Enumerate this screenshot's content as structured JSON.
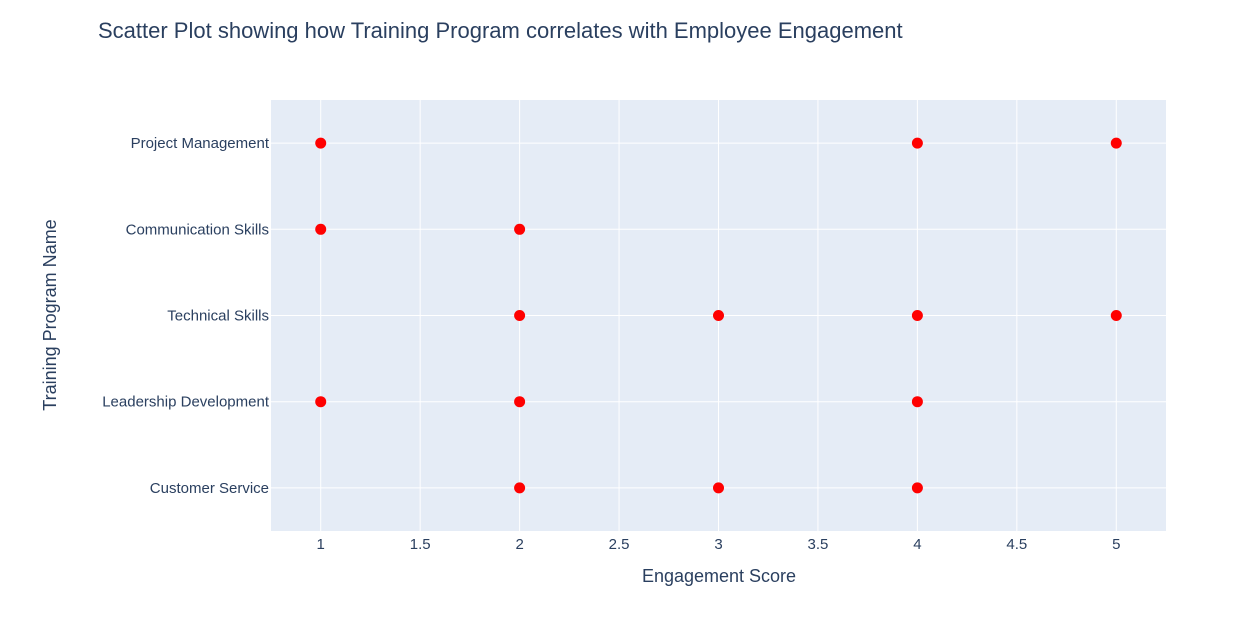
{
  "chart_data": {
    "type": "scatter",
    "title": "Scatter Plot showing how Training Program correlates with Employee Engagement",
    "xlabel": "Engagement Score",
    "ylabel": "Training Program Name",
    "xlim": [
      0.75,
      5.25
    ],
    "xticks": [
      1,
      1.5,
      2,
      2.5,
      3,
      3.5,
      4,
      4.5,
      5
    ],
    "categories": [
      "Customer Service",
      "Leadership Development",
      "Technical Skills",
      "Communication Skills",
      "Project Management"
    ],
    "grid": true,
    "legend": "none",
    "marker_color": "#ff0000",
    "plot_background": "#e5ecf6",
    "grid_color": "#ffffff",
    "text_color": "#2a3f5f",
    "points": [
      {
        "x": 1,
        "y": "Project Management"
      },
      {
        "x": 4,
        "y": "Project Management"
      },
      {
        "x": 5,
        "y": "Project Management"
      },
      {
        "x": 1,
        "y": "Communication Skills"
      },
      {
        "x": 2,
        "y": "Communication Skills"
      },
      {
        "x": 2,
        "y": "Technical Skills"
      },
      {
        "x": 3,
        "y": "Technical Skills"
      },
      {
        "x": 4,
        "y": "Technical Skills"
      },
      {
        "x": 5,
        "y": "Technical Skills"
      },
      {
        "x": 1,
        "y": "Leadership Development"
      },
      {
        "x": 2,
        "y": "Leadership Development"
      },
      {
        "x": 4,
        "y": "Leadership Development"
      },
      {
        "x": 2,
        "y": "Customer Service"
      },
      {
        "x": 3,
        "y": "Customer Service"
      },
      {
        "x": 4,
        "y": "Customer Service"
      }
    ]
  }
}
